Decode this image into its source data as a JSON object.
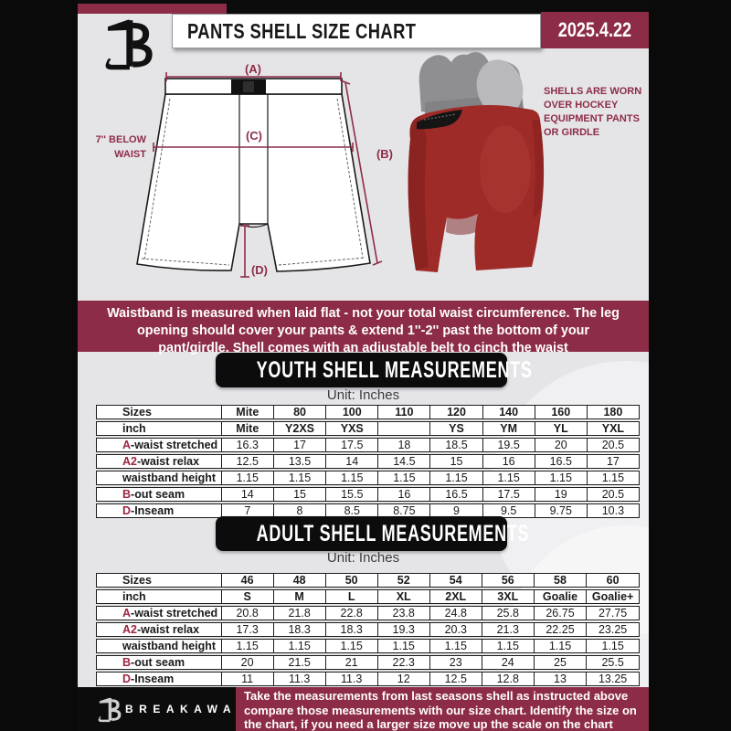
{
  "colors": {
    "maroon": "#8d2c46",
    "black": "#0c0c0c",
    "page_gray": "#e5e5e8",
    "accent_letter": "#9e2440",
    "shell_red": "#9e2b28",
    "girdle_gray": "#8f8f92"
  },
  "header": {
    "title": "PANTS SHELL SIZE CHART",
    "date": "2025.4.22"
  },
  "diagram": {
    "label_a": "(A)",
    "label_b": "(B)",
    "label_c": "(C)",
    "label_d": "(D)",
    "waist_note_line1": "7'' BELOW",
    "waist_note_line2": "WAIST",
    "photo_note": "SHELLS ARE WORN OVER HOCKEY EQUIPMENT PANTS OR GIRDLE"
  },
  "info_banner": "Waistband is measured when laid flat - not your total waist circumference. The leg opening should cover your pants & extend 1''-2'' past the bottom of your pant/girdle. Shell comes with an adjustable belt to cinch the waist",
  "youth": {
    "heading": "YOUTH SHELL MEASUREMENTS",
    "unit": "Unit: Inches",
    "rows": [
      {
        "prefix": "",
        "label": "Sizes",
        "bold": true,
        "values": [
          "Mite",
          "80",
          "100",
          "110",
          "120",
          "140",
          "160",
          "180"
        ]
      },
      {
        "prefix": "",
        "label": "inch",
        "bold": true,
        "values": [
          "Mite",
          "Y2XS",
          "YXS",
          "",
          "YS",
          "YM",
          "YL",
          "YXL"
        ]
      },
      {
        "prefix": "A",
        "label": "-waist stretched",
        "bold": false,
        "values": [
          "16.3",
          "17",
          "17.5",
          "18",
          "18.5",
          "19.5",
          "20",
          "20.5"
        ]
      },
      {
        "prefix": "A2",
        "label": "-waist relax",
        "bold": false,
        "values": [
          "12.5",
          "13.5",
          "14",
          "14.5",
          "15",
          "16",
          "16.5",
          "17"
        ]
      },
      {
        "prefix": "",
        "label": "waistband height",
        "bold": false,
        "values": [
          "1.15",
          "1.15",
          "1.15",
          "1.15",
          "1.15",
          "1.15",
          "1.15",
          "1.15"
        ]
      },
      {
        "prefix": "B",
        "label": "-out seam",
        "bold": false,
        "values": [
          "14",
          "15",
          "15.5",
          "16",
          "16.5",
          "17.5",
          "19",
          "20.5"
        ]
      },
      {
        "prefix": "D",
        "label": "-Inseam",
        "bold": false,
        "values": [
          "7",
          "8",
          "8.5",
          "8.75",
          "9",
          "9.5",
          "9.75",
          "10.3"
        ]
      }
    ]
  },
  "adult": {
    "heading": "ADULT SHELL MEASUREMENTS",
    "unit": "Unit: Inches",
    "rows": [
      {
        "prefix": "",
        "label": "Sizes",
        "bold": true,
        "values": [
          "46",
          "48",
          "50",
          "52",
          "54",
          "56",
          "58",
          "60"
        ]
      },
      {
        "prefix": "",
        "label": "inch",
        "bold": true,
        "values": [
          "S",
          "M",
          "L",
          "XL",
          "2XL",
          "3XL",
          "Goalie",
          "Goalie+"
        ]
      },
      {
        "prefix": "A",
        "label": "-waist stretched",
        "bold": false,
        "values": [
          "20.8",
          "21.8",
          "22.8",
          "23.8",
          "24.8",
          "25.8",
          "26.75",
          "27.75"
        ]
      },
      {
        "prefix": "A2",
        "label": "-waist relax",
        "bold": false,
        "values": [
          "17.3",
          "18.3",
          "18.3",
          "19.3",
          "20.3",
          "21.3",
          "22.25",
          "23.25"
        ]
      },
      {
        "prefix": "",
        "label": "waistband height",
        "bold": false,
        "values": [
          "1.15",
          "1.15",
          "1.15",
          "1.15",
          "1.15",
          "1.15",
          "1.15",
          "1.15"
        ]
      },
      {
        "prefix": "B",
        "label": "-out seam",
        "bold": false,
        "values": [
          "20",
          "21.5",
          "21",
          "22.3",
          "23",
          "24",
          "25",
          "25.5"
        ]
      },
      {
        "prefix": "D",
        "label": "-Inseam",
        "bold": false,
        "values": [
          "11",
          "11.3",
          "11.3",
          "12",
          "12.5",
          "12.8",
          "13",
          "13.25"
        ]
      }
    ]
  },
  "footer": {
    "brand": "BREAKAWAY",
    "text": "Take the measurements from last seasons shell as instructed above compare those measurements  with our size chart. Identify the size on the chart, if you need a larger size move up the scale on the chart"
  }
}
